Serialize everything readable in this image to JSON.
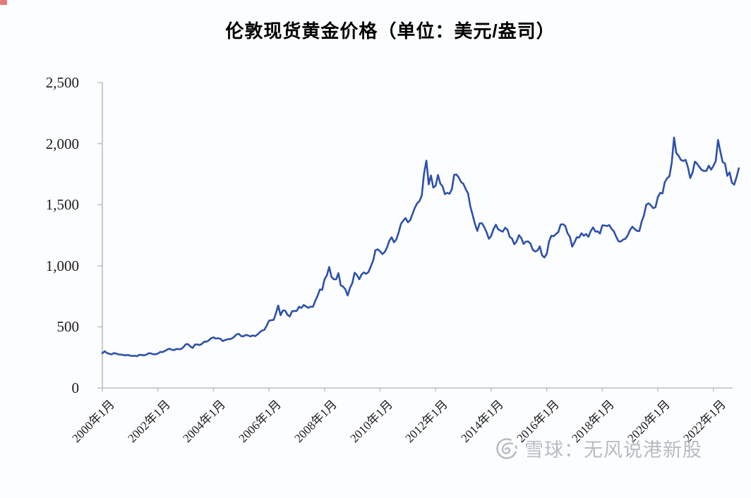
{
  "title": "伦敦现货黄金价格（单位：美元/盎司）",
  "watermark": {
    "brand": "雪球",
    "account": "无风说港新股",
    "full_text": "雪球：无风说港新股",
    "icon": "xueqiu-snowball-logo",
    "color": "#a9abb6"
  },
  "colors": {
    "line": "#2d51ab",
    "axis": "#b9bdc6",
    "tick_label": "#1c1c1e",
    "title": "#000000",
    "background": "#fcfdfe",
    "corner_mark": "#e14b4b"
  },
  "chart_data": {
    "type": "line",
    "title": "伦敦现货黄金价格（单位：美元/盎司）",
    "unit": "美元/盎司",
    "xlabel": "",
    "ylabel": "",
    "grid": false,
    "legend": "none",
    "ylim": [
      0,
      2500
    ],
    "y_tick_labels": [
      "0",
      "500",
      "1,000",
      "1,500",
      "2,000",
      "2,500"
    ],
    "x_tick_labels": [
      "2000年1月",
      "2002年1月",
      "2004年1月",
      "2006年1月",
      "2008年1月",
      "2010年1月",
      "2012年1月",
      "2014年1月",
      "2016年1月",
      "2018年1月",
      "2020年1月",
      "2022年1月"
    ],
    "x_range": {
      "start": "2000-01",
      "end": "2022-12",
      "frequency": "monthly"
    },
    "series": [
      {
        "name": "伦敦现货黄金价格",
        "color": "#2d51ab",
        "values": [
          284,
          300,
          286,
          280,
          275,
          286,
          281,
          274,
          273,
          270,
          266,
          271,
          265,
          262,
          263,
          260,
          272,
          270,
          267,
          272,
          284,
          283,
          276,
          276,
          281,
          295,
          294,
          302,
          314,
          321,
          313,
          310,
          319,
          317,
          319,
          333,
          357,
          359,
          340,
          328,
          355,
          356,
          351,
          360,
          379,
          379,
          389,
          407,
          414,
          405,
          407,
          403,
          384,
          392,
          398,
          400,
          405,
          420,
          439,
          442,
          424,
          423,
          434,
          429,
          422,
          431,
          424,
          437,
          456,
          470,
          476,
          510,
          550,
          555,
          557,
          611,
          675,
          596,
          634,
          632,
          599,
          586,
          628,
          630,
          631,
          665,
          655,
          679,
          667,
          656,
          665,
          665,
          713,
          755,
          806,
          803,
          890,
          922,
          990,
          910,
          889,
          889,
          940,
          839,
          830,
          807,
          757,
          820,
          859,
          943,
          924,
          890,
          929,
          946,
          934,
          949,
          996,
          1043,
          1127,
          1135,
          1118,
          1095,
          1113,
          1149,
          1205,
          1233,
          1193,
          1216,
          1271,
          1342,
          1370,
          1391,
          1356,
          1373,
          1424,
          1474,
          1511,
          1529,
          1573,
          1756,
          1860,
          1666,
          1739,
          1640,
          1654,
          1743,
          1674,
          1650,
          1586,
          1597,
          1590,
          1626,
          1745,
          1747,
          1722,
          1685,
          1671,
          1628,
          1593,
          1485,
          1414,
          1343,
          1286,
          1347,
          1348,
          1316,
          1276,
          1221,
          1244,
          1301,
          1336,
          1299,
          1288,
          1279,
          1311,
          1296,
          1238,
          1222,
          1176,
          1201,
          1251,
          1227,
          1179,
          1198,
          1199,
          1181,
          1130,
          1117,
          1125,
          1159,
          1086,
          1068,
          1097,
          1200,
          1246,
          1242,
          1260,
          1276,
          1337,
          1340,
          1327,
          1266,
          1238,
          1157,
          1192,
          1234,
          1231,
          1266,
          1246,
          1260,
          1237,
          1283,
          1314,
          1280,
          1282,
          1264,
          1331,
          1330,
          1325,
          1334,
          1303,
          1282,
          1238,
          1201,
          1198,
          1215,
          1221,
          1250,
          1292,
          1320,
          1301,
          1286,
          1284,
          1359,
          1413,
          1500,
          1511,
          1495,
          1471,
          1480,
          1561,
          1597,
          1592,
          1683,
          1716,
          1732,
          1843,
          2050,
          1922,
          1900,
          1866,
          1858,
          1867,
          1808,
          1718,
          1762,
          1853,
          1835,
          1807,
          1784,
          1776,
          1777,
          1820,
          1787,
          1817,
          1856,
          2030,
          1937,
          1850,
          1837,
          1736,
          1765,
          1681,
          1664,
          1726,
          1798
        ]
      }
    ]
  }
}
